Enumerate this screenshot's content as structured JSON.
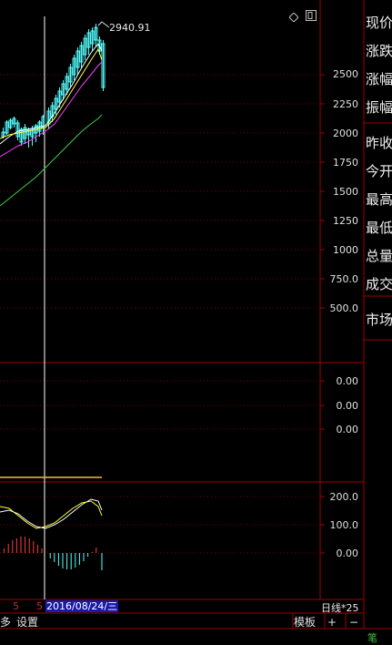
{
  "header": {
    "last_value": "2940.91",
    "diamond_icon": "diamond-icon",
    "window_icon": "window-icon"
  },
  "price_axis": [
    "2500",
    "2250",
    "2000",
    "1750",
    "1500",
    "1250",
    "1000",
    "750.0",
    "500.0"
  ],
  "volume_axis": [
    "0.00",
    "0.00",
    "0.00"
  ],
  "macd_axis": [
    "200.0",
    "100.0",
    "0.00"
  ],
  "info_panel": {
    "items": [
      "现价",
      "涨跌",
      "涨幅",
      "振幅",
      "昨收",
      "今开",
      "最高",
      "最低",
      "总量",
      "成交",
      "市场"
    ]
  },
  "bottom_bar": {
    "dates": [
      "5",
      "5"
    ],
    "cursor_date": "2016/08/24/三",
    "period": "日线*25"
  },
  "toolbar": {
    "left_partial": "多",
    "settings": "设置",
    "template": "模板",
    "plus": "+",
    "minus": "−",
    "corner": "笔"
  },
  "colors": {
    "grid_red": "#a00000",
    "dashed_red": "#7a0000",
    "candle_up": "#ff3c3c",
    "candle_down": "#54ffff",
    "ma_white": "#ffffff",
    "ma_yellow": "#ffff40",
    "ma_magenta": "#ff40ff",
    "ma_green": "#40d040"
  }
}
